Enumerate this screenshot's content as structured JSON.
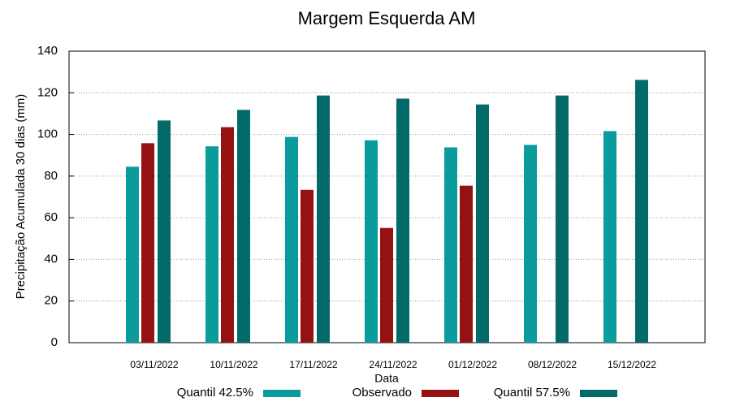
{
  "chart_data": {
    "type": "bar",
    "title": "Margem Esquerda AM",
    "x_label": "Data",
    "y_label": "Precipitação Acumulada 30 dias (mm)",
    "categories": [
      "03/11/2022",
      "10/11/2022",
      "17/11/2022",
      "24/11/2022",
      "01/12/2022",
      "08/12/2022",
      "15/12/2022"
    ],
    "series": [
      {
        "name": "Quantil 42.5%",
        "color": "#0a9c9c",
        "values": [
          84.5,
          94.3,
          98.8,
          97.2,
          93.8,
          95,
          101.6
        ]
      },
      {
        "name": "Observado",
        "color": "#941212",
        "values": [
          95.8,
          103.5,
          73.4,
          55.1,
          75.4,
          null,
          null
        ]
      },
      {
        "name": "Quantil 57.5%",
        "color": "#036a6a",
        "values": [
          106.7,
          111.8,
          118.7,
          117.2,
          114.4,
          118.7,
          126.2
        ]
      }
    ],
    "ylim": [
      0,
      140
    ],
    "yticks": [
      0,
      20,
      40,
      60,
      80,
      100,
      120,
      140
    ],
    "grid": true,
    "legend": "bottom"
  }
}
